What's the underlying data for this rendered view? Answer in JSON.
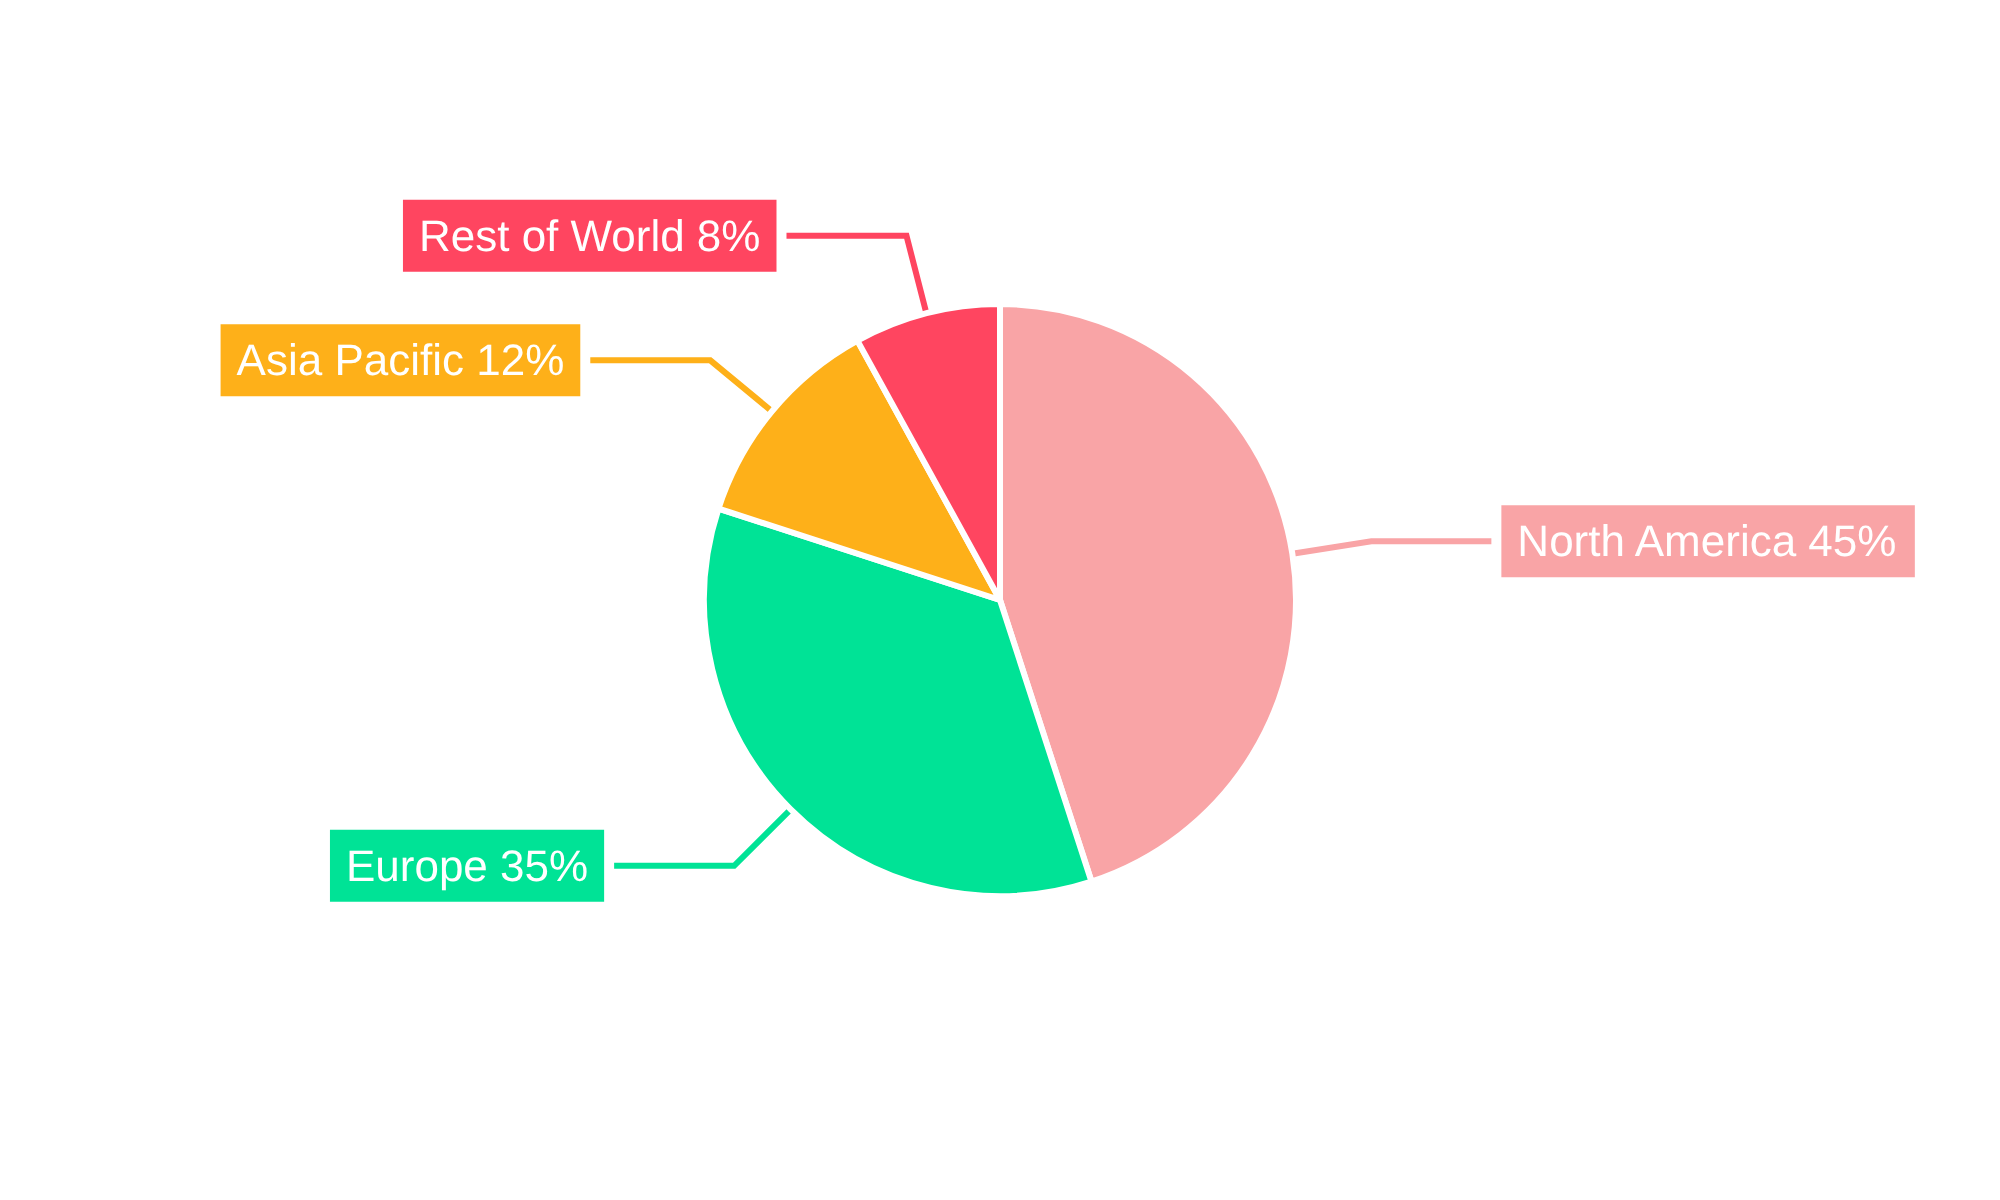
{
  "chart_data": {
    "type": "pie",
    "categories": [
      "North America",
      "Europe",
      "Asia Pacific",
      "Rest of World"
    ],
    "values": [
      45,
      35,
      12,
      8
    ],
    "value_labels": [
      "45%",
      "35%",
      "12%",
      "8%"
    ],
    "colors": [
      "#f9a4a6",
      "#00e396",
      "#feb019",
      "#ff4560"
    ],
    "legend": false
  }
}
